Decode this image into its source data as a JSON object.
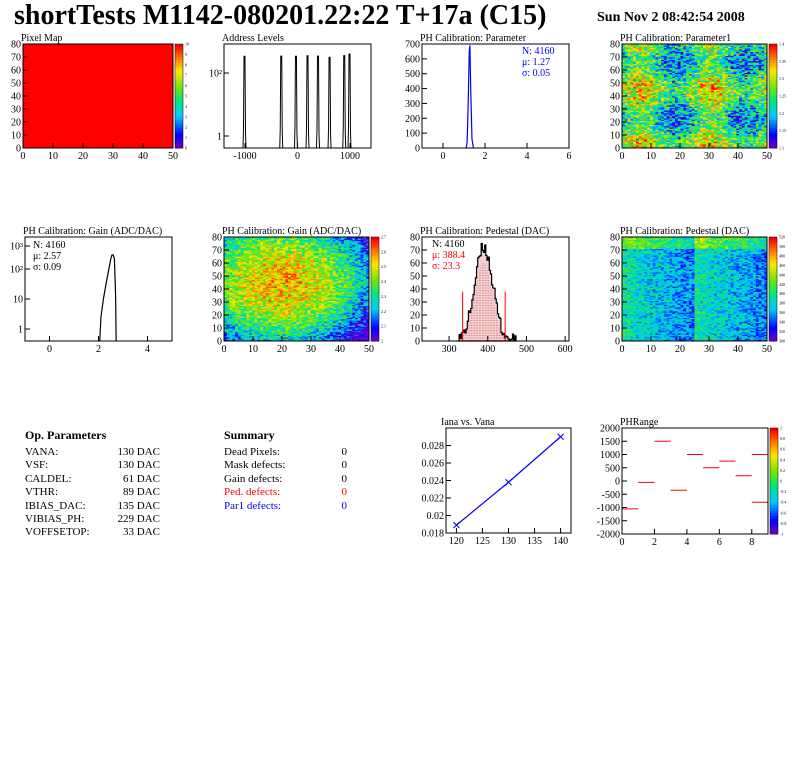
{
  "header": {
    "title": "shortTests M1142-080201.22:22 T+17a (C15)",
    "date": "Sun Nov  2 08:42:54 2008"
  },
  "colors": {
    "blue": "#0000ff",
    "red": "#ff0000",
    "stats_red": "#ff0000",
    "stats_blue": "#0000ff"
  },
  "chart_data": [
    {
      "id": "pixel-map",
      "type": "heatmap",
      "title": "Pixel Map",
      "xlim": [
        0,
        52
      ],
      "ylim": [
        0,
        80
      ],
      "xticks": [
        "0",
        "10",
        "20",
        "30",
        "40",
        "50"
      ],
      "yticks": [
        "0",
        "10",
        "20",
        "30",
        "40",
        "50",
        "60",
        "70",
        "80"
      ],
      "palette_ticks": [
        "0",
        "1",
        "2",
        "3",
        "4",
        "5",
        "6",
        "7",
        "8",
        "9",
        "10"
      ],
      "uniform_value": 10
    },
    {
      "id": "address-levels",
      "type": "histogram",
      "title": "Address Levels",
      "log_y": true,
      "xlim": [
        -1400,
        1400
      ],
      "xticks": [
        "-1000",
        "0",
        "1000"
      ],
      "yticks": [
        "1",
        "10²"
      ],
      "peaks": [
        -1000,
        -300,
        -20,
        200,
        400,
        620,
        900,
        1000
      ]
    },
    {
      "id": "ph-parameter",
      "type": "histogram",
      "title": "PH Calibration: Parameter",
      "xlim": [
        -1,
        6
      ],
      "ylim": [
        0,
        700
      ],
      "xticks": [
        "0",
        "2",
        "4",
        "6"
      ],
      "yticks": [
        "0",
        "100",
        "200",
        "300",
        "400",
        "500",
        "600",
        "700"
      ],
      "stats": {
        "n": "N: 4160",
        "mu": "μ: 1.27",
        "sigma": "σ: 0.05"
      },
      "peak_x": 1.27,
      "peak_y": 690
    },
    {
      "id": "ph-parameter1",
      "type": "heatmap",
      "title": "PH Calibration: Parameter1",
      "xlim": [
        0,
        52
      ],
      "ylim": [
        0,
        80
      ],
      "xticks": [
        "0",
        "10",
        "20",
        "30",
        "40",
        "50"
      ],
      "yticks": [
        "0",
        "10",
        "20",
        "30",
        "40",
        "50",
        "60",
        "70",
        "80"
      ],
      "palette_ticks": [
        "1.1",
        "1.15",
        "1.2",
        "1.25",
        "1.3",
        "1.35",
        "1.4"
      ]
    },
    {
      "id": "ph-gain",
      "type": "histogram",
      "title": "PH Calibration: Gain (ADC/DAC)",
      "log_y": true,
      "xlim": [
        -1,
        5
      ],
      "xticks": [
        "0",
        "2",
        "4"
      ],
      "yticks": [
        "1",
        "10",
        "10²",
        "10³"
      ],
      "stats": {
        "n": "N: 4160",
        "mu": "μ: 2.57",
        "sigma": "σ: 0.09"
      },
      "peak_x": 2.6
    },
    {
      "id": "ph-gain-map",
      "type": "heatmap",
      "title": "PH Calibration: Gain (ADC/DAC)",
      "xlim": [
        0,
        52
      ],
      "ylim": [
        0,
        80
      ],
      "xticks": [
        "0",
        "10",
        "20",
        "30",
        "40",
        "50"
      ],
      "yticks": [
        "0",
        "10",
        "20",
        "30",
        "40",
        "50",
        "60",
        "70",
        "80"
      ],
      "palette_ticks": [
        "2",
        "2.1",
        "2.2",
        "2.3",
        "2.4",
        "2.5",
        "2.6",
        "2.7"
      ]
    },
    {
      "id": "ph-pedestal",
      "type": "histogram",
      "title": "PH Calibration: Pedestal (DAC)",
      "xlim": [
        230,
        610
      ],
      "ylim": [
        0,
        80
      ],
      "xticks": [
        "300",
        "400",
        "500",
        "600"
      ],
      "yticks": [
        "0",
        "10",
        "20",
        "30",
        "40",
        "50",
        "60",
        "70",
        "80"
      ],
      "stats": {
        "n": "N: 4160",
        "mu": "μ: 388.4",
        "sigma": "σ: 23.3"
      },
      "mean": 388.4,
      "sigma": 23.3,
      "cut_lo": 335,
      "cut_hi": 445
    },
    {
      "id": "ph-pedestal-map",
      "type": "heatmap",
      "title": "PH Calibration: Pedestal (DAC)",
      "xlim": [
        0,
        52
      ],
      "ylim": [
        0,
        80
      ],
      "xticks": [
        "0",
        "10",
        "20",
        "30",
        "40",
        "50"
      ],
      "yticks": [
        "0",
        "10",
        "20",
        "30",
        "40",
        "50",
        "60",
        "70",
        "80"
      ],
      "palette_ticks": [
        "300",
        "320",
        "340",
        "360",
        "380",
        "400",
        "420",
        "440",
        "460",
        "480",
        "500",
        "520"
      ]
    },
    {
      "id": "iana-vs-vana",
      "type": "line",
      "title": "Iana vs. Vana",
      "xlim": [
        118,
        142
      ],
      "ylim": [
        0.018,
        0.03
      ],
      "xticks": [
        "120",
        "125",
        "130",
        "135",
        "140"
      ],
      "yticks": [
        "0.018",
        "0.02",
        "0.022",
        "0.024",
        "0.026",
        "0.028"
      ],
      "x": [
        120,
        130,
        140
      ],
      "y": [
        0.0189,
        0.0238,
        0.029
      ]
    },
    {
      "id": "ph-range",
      "type": "scatter",
      "title": "PHRange",
      "xlim": [
        0,
        9
      ],
      "ylim": [
        -2000,
        2000
      ],
      "xticks": [
        "0",
        "2",
        "4",
        "6",
        "8"
      ],
      "yticks": [
        "-2000",
        "-1500",
        "-1000",
        "-500",
        "0",
        "500",
        "1000",
        "1500",
        "2000"
      ],
      "palette_ticks": [
        "-1",
        "-0.8",
        "-0.6",
        "-0.4",
        "-0.2",
        "0",
        "0.2",
        "0.4",
        "0.6",
        "0.8",
        "1"
      ],
      "x": [
        0.5,
        1.5,
        2.5,
        3.5,
        4.5,
        5.5,
        6.5,
        7.5,
        8.5
      ],
      "y": [
        -1050,
        -50,
        1500,
        -350,
        1000,
        500,
        750,
        200,
        1000
      ],
      "extra": [
        {
          "x": 8.5,
          "y": -800
        }
      ]
    }
  ],
  "op_params": {
    "title": "Op. Parameters",
    "rows": [
      {
        "label": "VANA:",
        "value": "130 DAC"
      },
      {
        "label": "VSF:",
        "value": "130 DAC"
      },
      {
        "label": "CALDEL:",
        "value": "61 DAC"
      },
      {
        "label": "VTHR:",
        "value": "89 DAC"
      },
      {
        "label": "IBIAS_DAC:",
        "value": "135 DAC"
      },
      {
        "label": "VIBIAS_PH:",
        "value": "229 DAC"
      },
      {
        "label": "VOFFSETOP:",
        "value": "33 DAC"
      }
    ]
  },
  "summary": {
    "title": "Summary",
    "rows": [
      {
        "label": "Dead Pixels:",
        "value": "0",
        "color": "#000000"
      },
      {
        "label": "Mask defects:",
        "value": "0",
        "color": "#000000"
      },
      {
        "label": "Gain defects:",
        "value": "0",
        "color": "#000000"
      },
      {
        "label": "Ped. defects:",
        "value": "0",
        "color": "#ff0000"
      },
      {
        "label": "Par1 defects:",
        "value": "0",
        "color": "#0000ff"
      }
    ]
  }
}
